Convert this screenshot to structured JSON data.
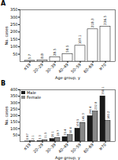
{
  "chart_data": [
    {
      "type": "bar",
      "title": "A",
      "categories": [
        "≤19",
        "20–29",
        "30–39",
        "40–49",
        "50–59",
        "60–69",
        "≥70"
      ],
      "values": [
        5.7,
        8.8,
        28.5,
        50.5,
        107.1,
        218.3,
        236.5
      ],
      "color": "white",
      "xlabel": "Age group, y",
      "ylabel": "No. cases",
      "ylim": [
        0,
        350
      ],
      "yticks": [
        50,
        100,
        150,
        200,
        250,
        300,
        350
      ],
      "data_labels": true
    },
    {
      "type": "bar",
      "title": "B",
      "categories": [
        "≤19",
        "20–29",
        "30–39",
        "40–49",
        "50–59",
        "60–69",
        "≥70"
      ],
      "series": [
        {
          "name": "Male",
          "color": "#1a1a1a",
          "values": [
            0.97,
            3.3,
            20.1,
            35.4,
            100.5,
            196.4,
            350.1
          ]
        },
        {
          "name": "Female",
          "color": "#888888",
          "values": [
            2.1,
            11.5,
            28.7,
            50.4,
            145.3,
            232.8,
            160.2
          ]
        }
      ],
      "xlabel": "Age group, y",
      "ylabel": "No. cases",
      "ylim": [
        0,
        400
      ],
      "yticks": [
        50,
        100,
        150,
        200,
        250,
        300,
        350,
        400
      ],
      "legend": "upper left",
      "data_labels": true
    }
  ]
}
